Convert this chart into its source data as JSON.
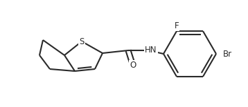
{
  "bg_color": "#ffffff",
  "line_color": "#2a2a2a",
  "line_width": 1.5,
  "figsize": [
    3.58,
    1.55
  ],
  "dpi": 100,
  "S_label": "S",
  "O_label": "O",
  "NH_label": "HN",
  "F_label": "F",
  "Br_label": "Br",
  "font_size": 8.5
}
